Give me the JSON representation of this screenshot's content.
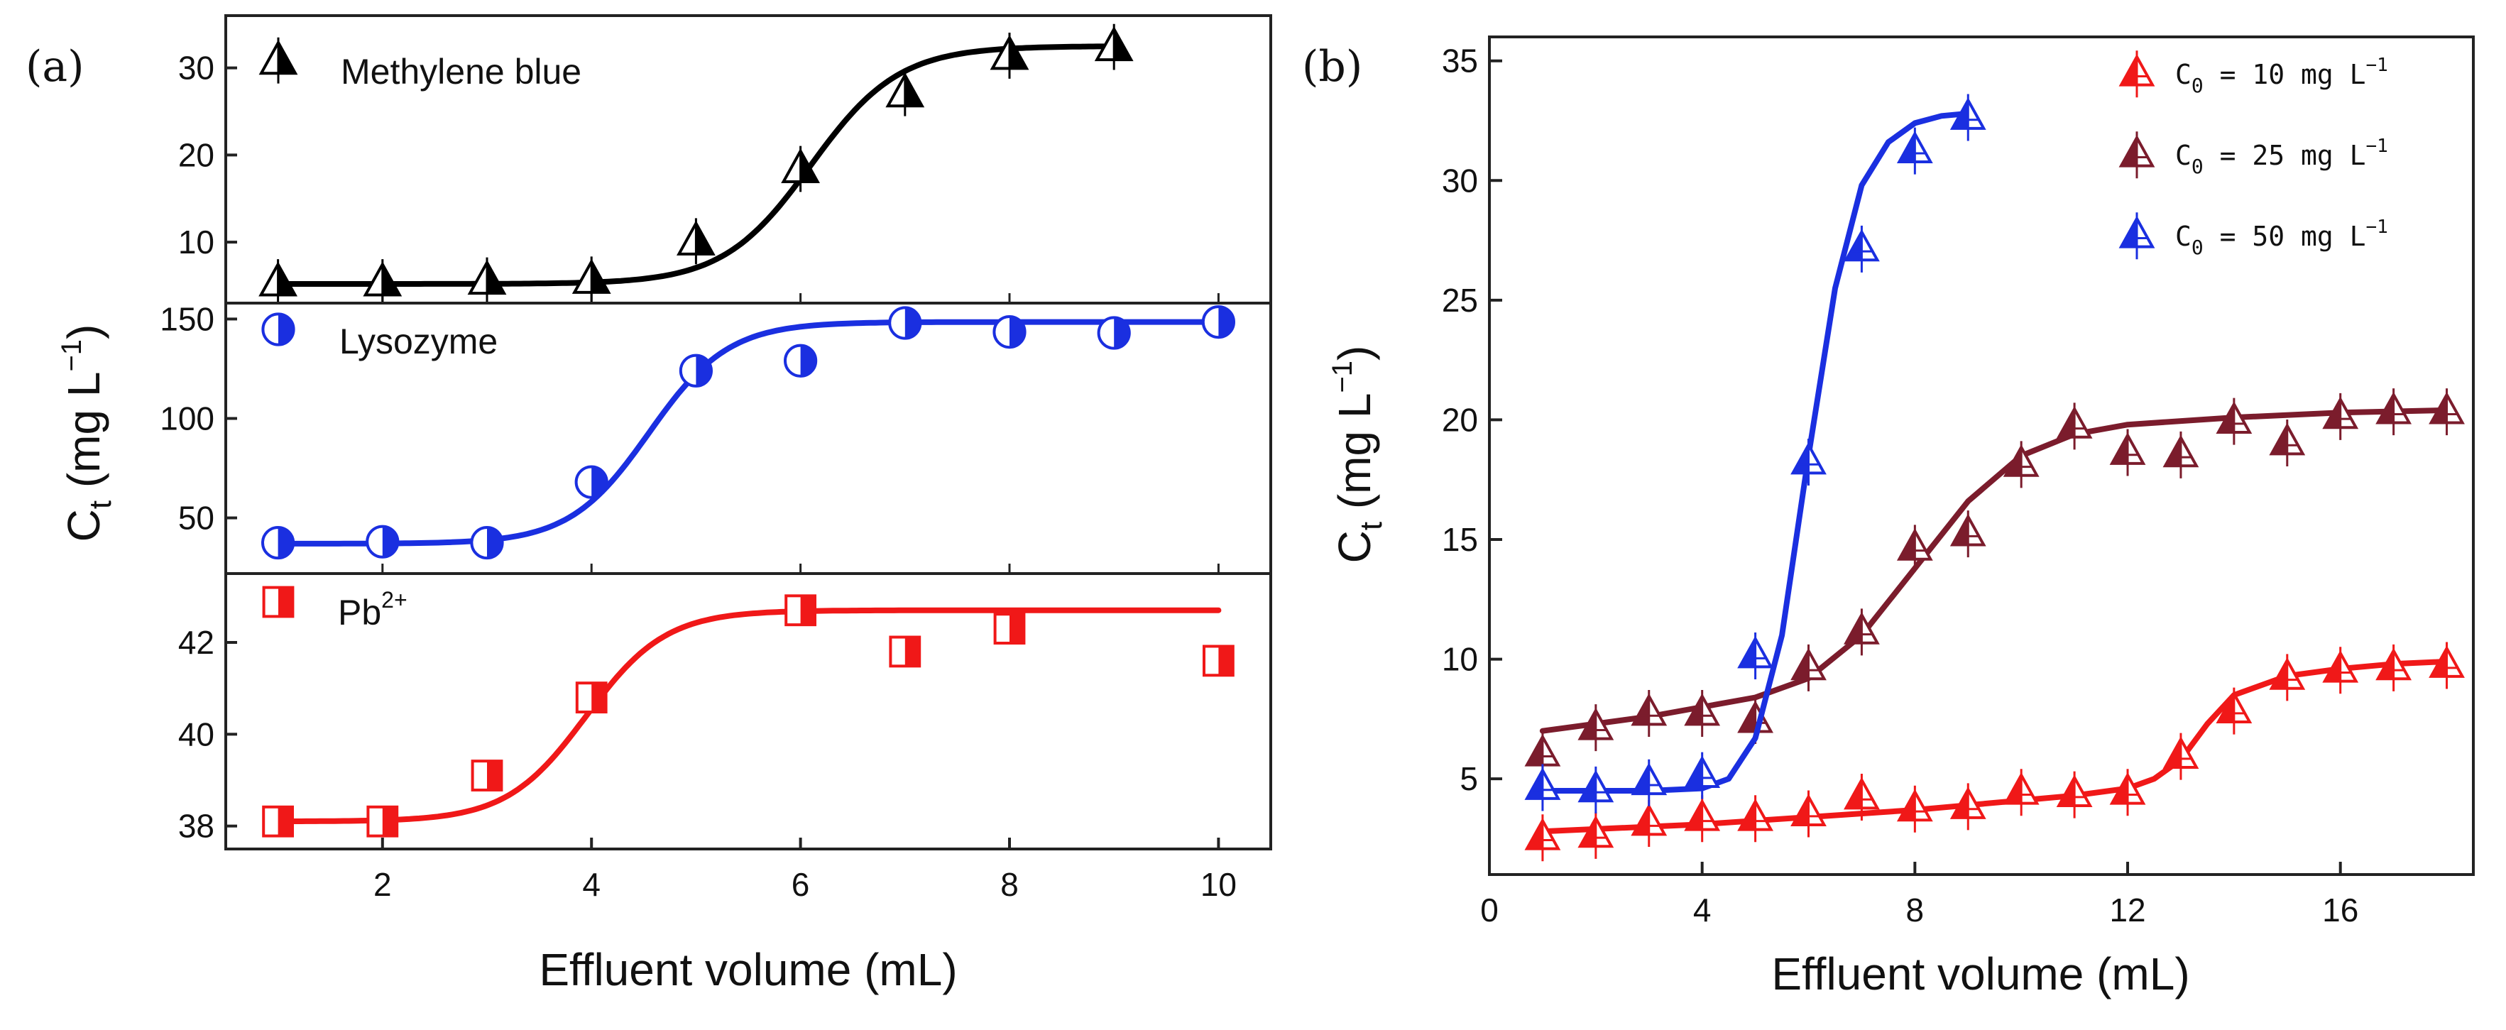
{
  "chart_data": [
    {
      "panel_label": "(a)",
      "type": "scatter",
      "xlabel": "Effluent volume (mL)",
      "ylabel_main": "C",
      "ylabel_sub": "t",
      "ylabel_rest": " (mg L",
      "ylabel_sup": "−1",
      "ylabel_end": ")",
      "xlim": [
        0.5,
        10.5
      ],
      "x_ticks": [
        "2",
        "4",
        "6",
        "8",
        "10"
      ],
      "subplots": [
        {
          "series_name": "Methylene blue",
          "color": "#000000",
          "marker": "triangle",
          "ylim": [
            3,
            36
          ],
          "y_ticks": [
            "10",
            "20",
            "30"
          ],
          "points": [
            [
              1,
              5.5
            ],
            [
              2,
              5.5
            ],
            [
              3,
              5.7
            ],
            [
              4,
              5.8
            ],
            [
              5,
              10.2
            ],
            [
              6,
              18.5
            ],
            [
              7,
              27.2
            ],
            [
              8,
              31.5
            ],
            [
              9,
              32.5
            ]
          ],
          "fit": {
            "bottom": 5.2,
            "top": 32.5,
            "x50": 6.1,
            "slope": 0.42
          }
        },
        {
          "series_name": "Lysozyme",
          "color": "#1a2fe0",
          "marker": "circle",
          "ylim": [
            22,
            158
          ],
          "y_ticks": [
            "50",
            "100",
            "150"
          ],
          "points": [
            [
              1,
              37.5
            ],
            [
              2,
              38.0
            ],
            [
              3,
              37.5
            ],
            [
              4,
              68.0
            ],
            [
              5,
              124.0
            ],
            [
              6,
              129.0
            ],
            [
              7,
              148.0
            ],
            [
              8,
              143.5
            ],
            [
              9,
              143.0
            ],
            [
              10,
              148.5
            ]
          ],
          "fit": {
            "bottom": 37.0,
            "top": 148.5,
            "x50": 4.55,
            "slope": 0.38
          }
        },
        {
          "series_name": "Pb",
          "series_sup": "2+",
          "color": "#f01818",
          "marker": "square",
          "ylim": [
            37.5,
            43.5
          ],
          "y_ticks": [
            "38",
            "40",
            "42"
          ],
          "points": [
            [
              1,
              38.1
            ],
            [
              2,
              38.1
            ],
            [
              3,
              39.1
            ],
            [
              4,
              40.8
            ],
            [
              6,
              42.7
            ],
            [
              7,
              41.8
            ],
            [
              8,
              42.3
            ],
            [
              10,
              41.6
            ]
          ],
          "fit": {
            "bottom": 38.1,
            "top": 42.7,
            "x50": 3.95,
            "slope": 0.38
          }
        }
      ]
    },
    {
      "panel_label": "(b)",
      "type": "scatter",
      "xlabel": "Effluent volume (mL)",
      "ylabel_main": "C",
      "ylabel_sub": "t",
      "ylabel_rest": " (mg L",
      "ylabel_sup": "−1",
      "ylabel_end": ")",
      "xlim": [
        0,
        18.5
      ],
      "ylim": [
        1,
        36
      ],
      "x_ticks": [
        "0",
        "4",
        "8",
        "12",
        "16"
      ],
      "y_ticks": [
        "5",
        "10",
        "15",
        "20",
        "25",
        "30",
        "35"
      ],
      "legend_position": "top-right",
      "series": [
        {
          "name_prefix": "C",
          "name_sub": "0",
          "name_rest": " = 10 mg L",
          "name_sup": "−1",
          "color": "#f01818",
          "points": [
            [
              1,
              2.6
            ],
            [
              2,
              2.7
            ],
            [
              3,
              3.2
            ],
            [
              4,
              3.4
            ],
            [
              5,
              3.4
            ],
            [
              6,
              3.6
            ],
            [
              7,
              4.3
            ],
            [
              8,
              3.8
            ],
            [
              9,
              3.9
            ],
            [
              10,
              4.5
            ],
            [
              11,
              4.4
            ],
            [
              12,
              4.5
            ],
            [
              13,
              6.0
            ],
            [
              14,
              7.9
            ],
            [
              15,
              9.3
            ],
            [
              16,
              9.6
            ],
            [
              17,
              9.7
            ],
            [
              18,
              9.8
            ]
          ],
          "fit": [
            [
              1,
              2.8
            ],
            [
              2,
              2.9
            ],
            [
              4,
              3.1
            ],
            [
              6,
              3.4
            ],
            [
              8,
              3.7
            ],
            [
              10,
              4.1
            ],
            [
              11,
              4.3
            ],
            [
              12,
              4.6
            ],
            [
              12.5,
              5.0
            ],
            [
              13,
              5.8
            ],
            [
              13.5,
              7.3
            ],
            [
              14,
              8.5
            ],
            [
              15,
              9.3
            ],
            [
              16,
              9.6
            ],
            [
              17,
              9.8
            ],
            [
              18,
              9.9
            ]
          ]
        },
        {
          "name_prefix": "C",
          "name_sub": "0",
          "name_rest": " = 25 mg L",
          "name_sup": "−1",
          "color": "#7b1c2c",
          "points": [
            [
              1,
              6.1
            ],
            [
              2,
              7.2
            ],
            [
              3,
              7.8
            ],
            [
              4,
              7.8
            ],
            [
              5,
              7.5
            ],
            [
              6,
              9.7
            ],
            [
              7,
              11.2
            ],
            [
              8,
              14.7
            ],
            [
              9,
              15.3
            ],
            [
              10,
              18.2
            ],
            [
              11,
              19.8
            ],
            [
              12,
              18.7
            ],
            [
              13,
              18.6
            ],
            [
              14,
              20.0
            ],
            [
              15,
              19.1
            ],
            [
              16,
              20.2
            ],
            [
              17,
              20.4
            ],
            [
              18,
              20.4
            ]
          ],
          "fit": [
            [
              1,
              7.0
            ],
            [
              2,
              7.3
            ],
            [
              3,
              7.6
            ],
            [
              4,
              8.0
            ],
            [
              5,
              8.4
            ],
            [
              6,
              9.2
            ],
            [
              7,
              11.0
            ],
            [
              8,
              13.8
            ],
            [
              9,
              16.6
            ],
            [
              10,
              18.5
            ],
            [
              11,
              19.4
            ],
            [
              12,
              19.8
            ],
            [
              14,
              20.1
            ],
            [
              16,
              20.3
            ],
            [
              18,
              20.4
            ]
          ]
        },
        {
          "name_prefix": "C",
          "name_sub": "0",
          "name_rest": " = 50 mg L",
          "name_sup": "−1",
          "color": "#1a2fe0",
          "points": [
            [
              1,
              4.7
            ],
            [
              2,
              4.6
            ],
            [
              3,
              4.9
            ],
            [
              4,
              5.2
            ],
            [
              5,
              10.2
            ],
            [
              6,
              18.3
            ],
            [
              7,
              27.2
            ],
            [
              8,
              31.3
            ],
            [
              9,
              32.7
            ]
          ],
          "fit": [
            [
              1,
              4.5
            ],
            [
              2,
              4.5
            ],
            [
              3,
              4.5
            ],
            [
              4,
              4.6
            ],
            [
              4.5,
              5.0
            ],
            [
              5,
              6.7
            ],
            [
              5.5,
              11.0
            ],
            [
              6,
              18.5
            ],
            [
              6.5,
              25.5
            ],
            [
              7,
              29.8
            ],
            [
              7.5,
              31.6
            ],
            [
              8,
              32.4
            ],
            [
              8.5,
              32.7
            ],
            [
              9,
              32.8
            ]
          ]
        }
      ]
    }
  ]
}
